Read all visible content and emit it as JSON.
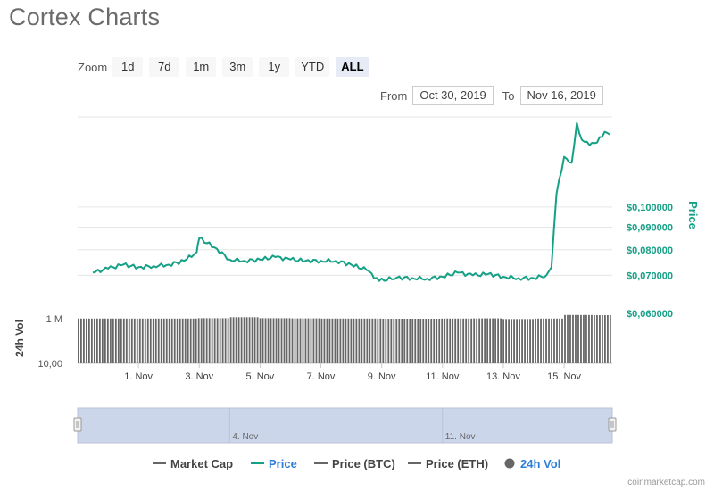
{
  "page": {
    "title": "Cortex Charts",
    "credit": "coinmarketcap.com"
  },
  "zoom": {
    "label": "Zoom",
    "buttons": [
      "1d",
      "7d",
      "1m",
      "3m",
      "1y",
      "YTD",
      "ALL"
    ],
    "active": "ALL"
  },
  "range": {
    "from_label": "From",
    "from_value": "Oct 30, 2019",
    "to_label": "To",
    "to_value": "Nov 16, 2019"
  },
  "colors": {
    "price": "#16a085",
    "volume": "#666666",
    "navigator_fill": "#ccd6eb",
    "grid": "#e6e6e6"
  },
  "chart_data": {
    "type": "line",
    "x_range": [
      "2019-10-30",
      "2019-11-16"
    ],
    "x_ticks": [
      "1. Nov",
      "3. Nov",
      "5. Nov",
      "7. Nov",
      "9. Nov",
      "11. Nov",
      "13. Nov",
      "15. Nov"
    ],
    "price_axis": {
      "label": "Price",
      "ticks": [
        "$0,060000",
        "$0,070000",
        "$0,080000",
        "$0,090000",
        "$0,100000"
      ],
      "scale": "log"
    },
    "volume_axis": {
      "label": "24h Vol",
      "ticks": [
        "10,00",
        "1 M"
      ],
      "scale": "log"
    },
    "price_series": {
      "name": "Price",
      "points": [
        [
          "2019-10-30T12:00",
          0.071
        ],
        [
          "2019-10-31T00:00",
          0.0725
        ],
        [
          "2019-10-31T12:00",
          0.074
        ],
        [
          "2019-11-01T00:00",
          0.073
        ],
        [
          "2019-11-01T12:00",
          0.0735
        ],
        [
          "2019-11-02T00:00",
          0.074
        ],
        [
          "2019-11-02T12:00",
          0.0755
        ],
        [
          "2019-11-02T22:00",
          0.079
        ],
        [
          "2019-11-03T00:00",
          0.085
        ],
        [
          "2019-11-03T12:00",
          0.081
        ],
        [
          "2019-11-04T00:00",
          0.076
        ],
        [
          "2019-11-04T12:00",
          0.0755
        ],
        [
          "2019-11-05T00:00",
          0.076
        ],
        [
          "2019-11-05T12:00",
          0.077
        ],
        [
          "2019-11-06T00:00",
          0.076
        ],
        [
          "2019-11-06T12:00",
          0.0755
        ],
        [
          "2019-11-07T00:00",
          0.0755
        ],
        [
          "2019-11-07T12:00",
          0.0755
        ],
        [
          "2019-11-08T00:00",
          0.074
        ],
        [
          "2019-11-08T12:00",
          0.072
        ],
        [
          "2019-11-08T22:00",
          0.068
        ],
        [
          "2019-11-09T12:00",
          0.0692
        ],
        [
          "2019-11-10T00:00",
          0.069
        ],
        [
          "2019-11-10T12:00",
          0.0688
        ],
        [
          "2019-11-11T00:00",
          0.0695
        ],
        [
          "2019-11-11T12:00",
          0.071
        ],
        [
          "2019-11-12T00:00",
          0.07
        ],
        [
          "2019-11-12T12:00",
          0.0705
        ],
        [
          "2019-11-13T00:00",
          0.0695
        ],
        [
          "2019-11-13T12:00",
          0.069
        ],
        [
          "2019-11-14T00:00",
          0.069
        ],
        [
          "2019-11-14T10:00",
          0.07
        ],
        [
          "2019-11-14T14:00",
          0.073
        ],
        [
          "2019-11-14T18:00",
          0.107
        ],
        [
          "2019-11-15T00:00",
          0.13
        ],
        [
          "2019-11-15T06:00",
          0.126
        ],
        [
          "2019-11-15T10:00",
          0.155
        ],
        [
          "2019-11-15T14:00",
          0.142
        ],
        [
          "2019-11-15T20:00",
          0.138
        ],
        [
          "2019-11-16T02:00",
          0.14
        ],
        [
          "2019-11-16T08:00",
          0.148
        ],
        [
          "2019-11-16T12:00",
          0.146
        ]
      ]
    },
    "volume_series": {
      "name": "24h Vol",
      "points": [
        [
          "2019-10-30",
          1.0
        ],
        [
          "2019-11-01",
          1.0
        ],
        [
          "2019-11-02",
          1.0
        ],
        [
          "2019-11-03",
          1.1
        ],
        [
          "2019-11-04",
          1.4
        ],
        [
          "2019-11-05",
          1.1
        ],
        [
          "2019-11-06",
          1.05
        ],
        [
          "2019-11-07",
          1.0
        ],
        [
          "2019-11-08",
          1.0
        ],
        [
          "2019-11-09",
          0.95
        ],
        [
          "2019-11-10",
          0.95
        ],
        [
          "2019-11-11",
          1.0
        ],
        [
          "2019-11-12",
          1.05
        ],
        [
          "2019-11-13",
          0.9
        ],
        [
          "2019-11-14",
          1.0
        ],
        [
          "2019-11-15",
          2.5
        ],
        [
          "2019-11-16",
          2.4
        ]
      ]
    },
    "navigator": {
      "labels": [
        "4. Nov",
        "11. Nov"
      ]
    },
    "legend": {
      "placement": "bottom",
      "items": [
        {
          "name": "Market Cap",
          "symbol": "line",
          "color": "#666666",
          "active": false
        },
        {
          "name": "Price",
          "symbol": "line",
          "color": "#16a085",
          "active": true
        },
        {
          "name": "Price (BTC)",
          "symbol": "line",
          "color": "#666666",
          "active": false
        },
        {
          "name": "Price (ETH)",
          "symbol": "line",
          "color": "#666666",
          "active": false
        },
        {
          "name": "24h Vol",
          "symbol": "circle",
          "color": "#666666",
          "active": true
        }
      ]
    }
  }
}
